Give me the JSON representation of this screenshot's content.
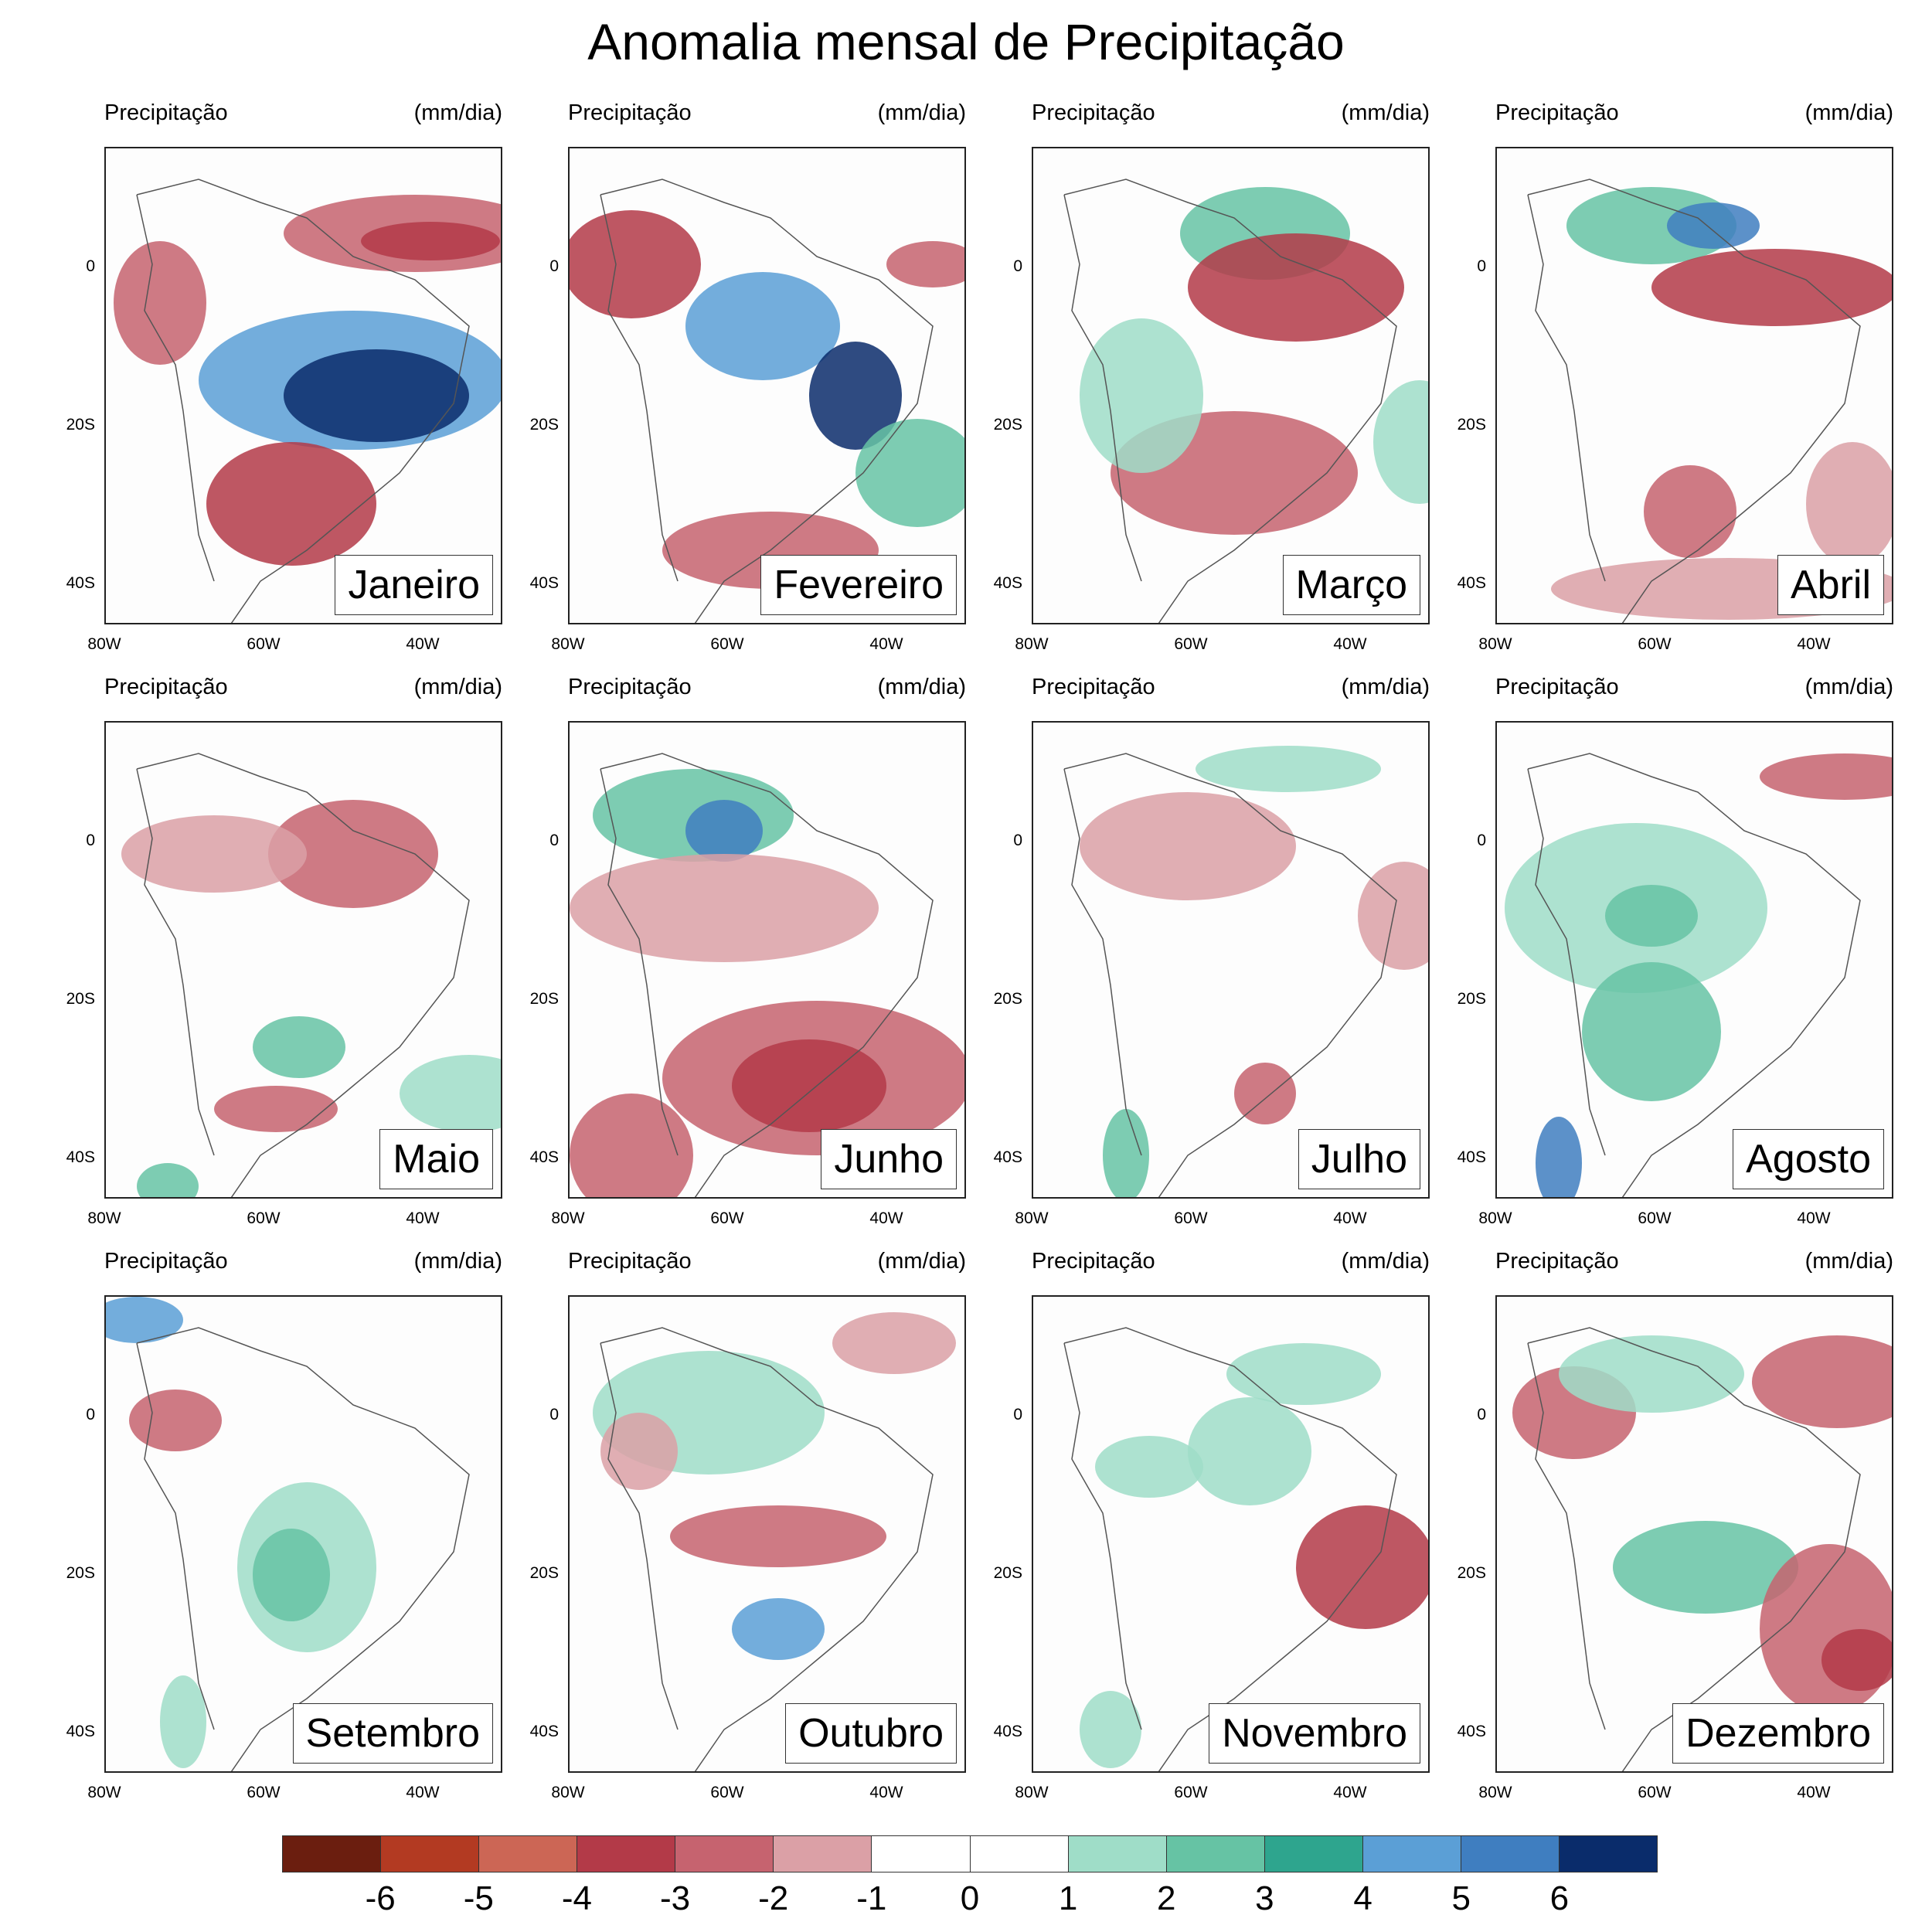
{
  "title": "Anomalia mensal de Precipitação",
  "panel_left_label": "Precipitação",
  "panel_right_label": "(mm/dia)",
  "y_ticks": [
    "0",
    "20S",
    "40S"
  ],
  "x_ticks": [
    "80W",
    "60W",
    "40W"
  ],
  "months": [
    "Janeiro",
    "Fevereiro",
    "Março",
    "Abril",
    "Maio",
    "Junho",
    "Julho",
    "Agosto",
    "Setembro",
    "Outubro",
    "Novembro",
    "Dezembro"
  ],
  "colorbar": {
    "colors": [
      "#6b1e0f",
      "#b33a22",
      "#cc6655",
      "#b33a48",
      "#c6636f",
      "#dba0a6",
      "#ffffff",
      "#ffffff",
      "#9fddc8",
      "#66c3a4",
      "#2ea58e",
      "#5b9fd6",
      "#3f7ec0",
      "#0a2c6b"
    ],
    "labels": [
      "-6",
      "-5",
      "-4",
      "-3",
      "-2",
      "-1",
      "0",
      "1",
      "2",
      "3",
      "4",
      "5",
      "6"
    ]
  },
  "chart_data": {
    "type": "heatmap",
    "title": "Anomalia mensal de Precipitação",
    "units": "(mm/dia)",
    "x_range": [
      "80W",
      "30W"
    ],
    "y_range": [
      "15N",
      "45S"
    ],
    "levels": [
      -6,
      -5,
      -4,
      -3,
      -2,
      -1,
      0,
      1,
      2,
      3,
      4,
      5,
      6
    ],
    "panels": [
      "Janeiro",
      "Fevereiro",
      "Março",
      "Abril",
      "Maio",
      "Junho",
      "Julho",
      "Agosto",
      "Setembro",
      "Outubro",
      "Novembro",
      "Dezembro"
    ]
  }
}
